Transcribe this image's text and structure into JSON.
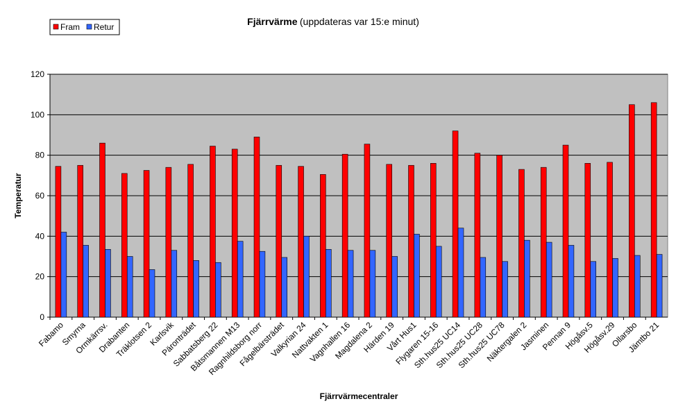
{
  "chart_data": {
    "type": "bar",
    "title": "Fjärrvärme",
    "subtitle": "(uppdateras var 15:e minut)",
    "x_label": "Fjärrvärmecentraler",
    "y_label": "Temperatur",
    "categories": [
      "Fabamo",
      "Smyrna",
      "Ormkärrsv.",
      "Drabanten",
      "Träklotsen 2",
      "Karlsvik",
      "Päronträdet",
      "Sabbatsberg 22",
      "Båtsmannen M13",
      "Ragnhildsborg norr",
      "Fågelbärsträdet",
      "Valkyrian 24",
      "Nattvakten 1",
      "Vagnhallen 16",
      "Magdalena 2",
      "Härden 19",
      "Vårt Hus1",
      "Flygaren 15-16",
      "Sth.hus25 UC14",
      "Sth.hus25 UC28",
      "Sth.hus25 UC78",
      "Näktergalen 2",
      "Jasminen",
      "Pennan 9",
      "Högåsv.5",
      "Högåsv.29",
      "Ollarsbo",
      "Jämtbo 21"
    ],
    "series": [
      {
        "name": "Fram",
        "color": "#ff0000",
        "values": [
          74.5,
          75,
          86,
          71,
          72.5,
          74,
          75.5,
          84.5,
          83,
          89,
          75,
          74.5,
          70.5,
          80.5,
          85.5,
          75.5,
          75,
          76,
          92,
          81,
          80,
          73,
          74,
          85,
          76,
          76.5,
          105,
          106
        ]
      },
      {
        "name": "Retur",
        "color": "#3366ff",
        "values": [
          42,
          35.5,
          33.5,
          30,
          23.5,
          33,
          28,
          27,
          37.5,
          32.5,
          29.5,
          40,
          33.5,
          33,
          33,
          30,
          41,
          35,
          44,
          29.5,
          27.5,
          38,
          37,
          35.5,
          27.5,
          29,
          30.5,
          31
        ]
      }
    ],
    "ylim": [
      0,
      120
    ],
    "yticks": [
      0,
      20,
      40,
      60,
      80,
      100,
      120
    ],
    "grid": true,
    "legend": "top-left",
    "background": "#c0c0c0"
  }
}
